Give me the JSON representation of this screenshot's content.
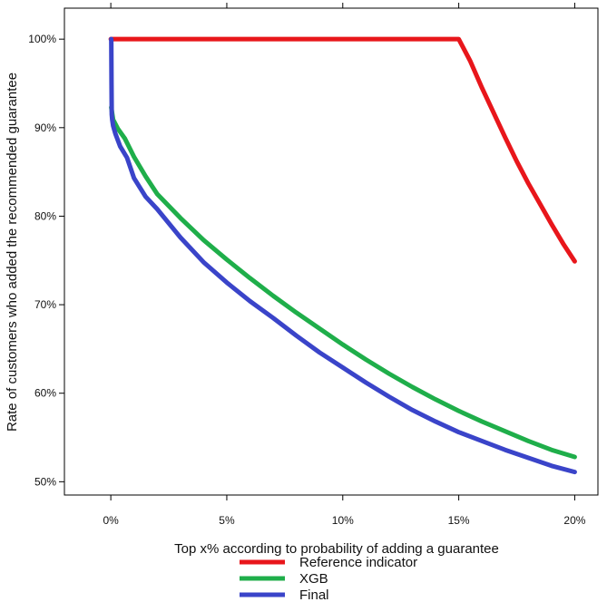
{
  "chart_data": {
    "type": "line",
    "xlabel": "Top x% according to probability of adding a guarantee",
    "ylabel": "Rate of customers who added the recommended guarantee",
    "xlim": [
      -2,
      21
    ],
    "ylim": [
      48.5,
      103.5
    ],
    "x_ticks": [
      0,
      5,
      10,
      15,
      20
    ],
    "x_tick_labels": [
      "0%",
      "5%",
      "10%",
      "15%",
      "20%"
    ],
    "y_ticks": [
      50,
      60,
      70,
      80,
      90,
      100
    ],
    "y_tick_labels": [
      "50%",
      "60%",
      "70%",
      "80%",
      "90%",
      "100%"
    ],
    "grid": false,
    "legend_position": "bottom",
    "series": [
      {
        "name": "Reference  indicator",
        "color": "#e8161b",
        "x": [
          0,
          15,
          15.5,
          16,
          16.5,
          17,
          17.5,
          18,
          18.5,
          19,
          19.5,
          20
        ],
        "y": [
          100,
          100,
          97.5,
          94.5,
          91.7,
          88.9,
          86.2,
          83.7,
          81.4,
          79.1,
          76.9,
          74.9
        ]
      },
      {
        "name": "XGB",
        "color": "#1fae4a",
        "x": [
          0.02,
          0.1,
          0.3,
          0.6,
          1,
          1.5,
          2,
          3,
          4,
          5,
          6,
          7,
          8,
          9,
          10,
          11,
          12,
          13,
          14,
          15,
          16,
          17,
          18,
          19,
          20
        ],
        "y": [
          92.3,
          90.9,
          89.9,
          88.8,
          86.7,
          84.5,
          82.5,
          79.8,
          77.3,
          75.1,
          73.0,
          71.0,
          69.1,
          67.3,
          65.5,
          63.8,
          62.2,
          60.7,
          59.3,
          58.0,
          56.8,
          55.7,
          54.6,
          53.6,
          52.8
        ]
      },
      {
        "name": "Final",
        "color": "#3a44c9",
        "x": [
          0.02,
          0.03,
          0.04,
          0.06,
          0.1,
          0.2,
          0.4,
          0.7,
          1,
          1.5,
          2,
          3,
          4,
          5,
          6,
          7,
          8,
          9,
          10,
          11,
          12,
          13,
          14,
          15,
          16,
          17,
          18,
          19,
          20
        ],
        "y": [
          100,
          95,
          91.5,
          90.9,
          90.2,
          89.3,
          87.9,
          86.6,
          84.3,
          82.2,
          80.8,
          77.6,
          74.8,
          72.5,
          70.4,
          68.5,
          66.5,
          64.6,
          62.9,
          61.2,
          59.6,
          58.1,
          56.8,
          55.6,
          54.6,
          53.6,
          52.7,
          51.8,
          51.1
        ]
      }
    ]
  }
}
